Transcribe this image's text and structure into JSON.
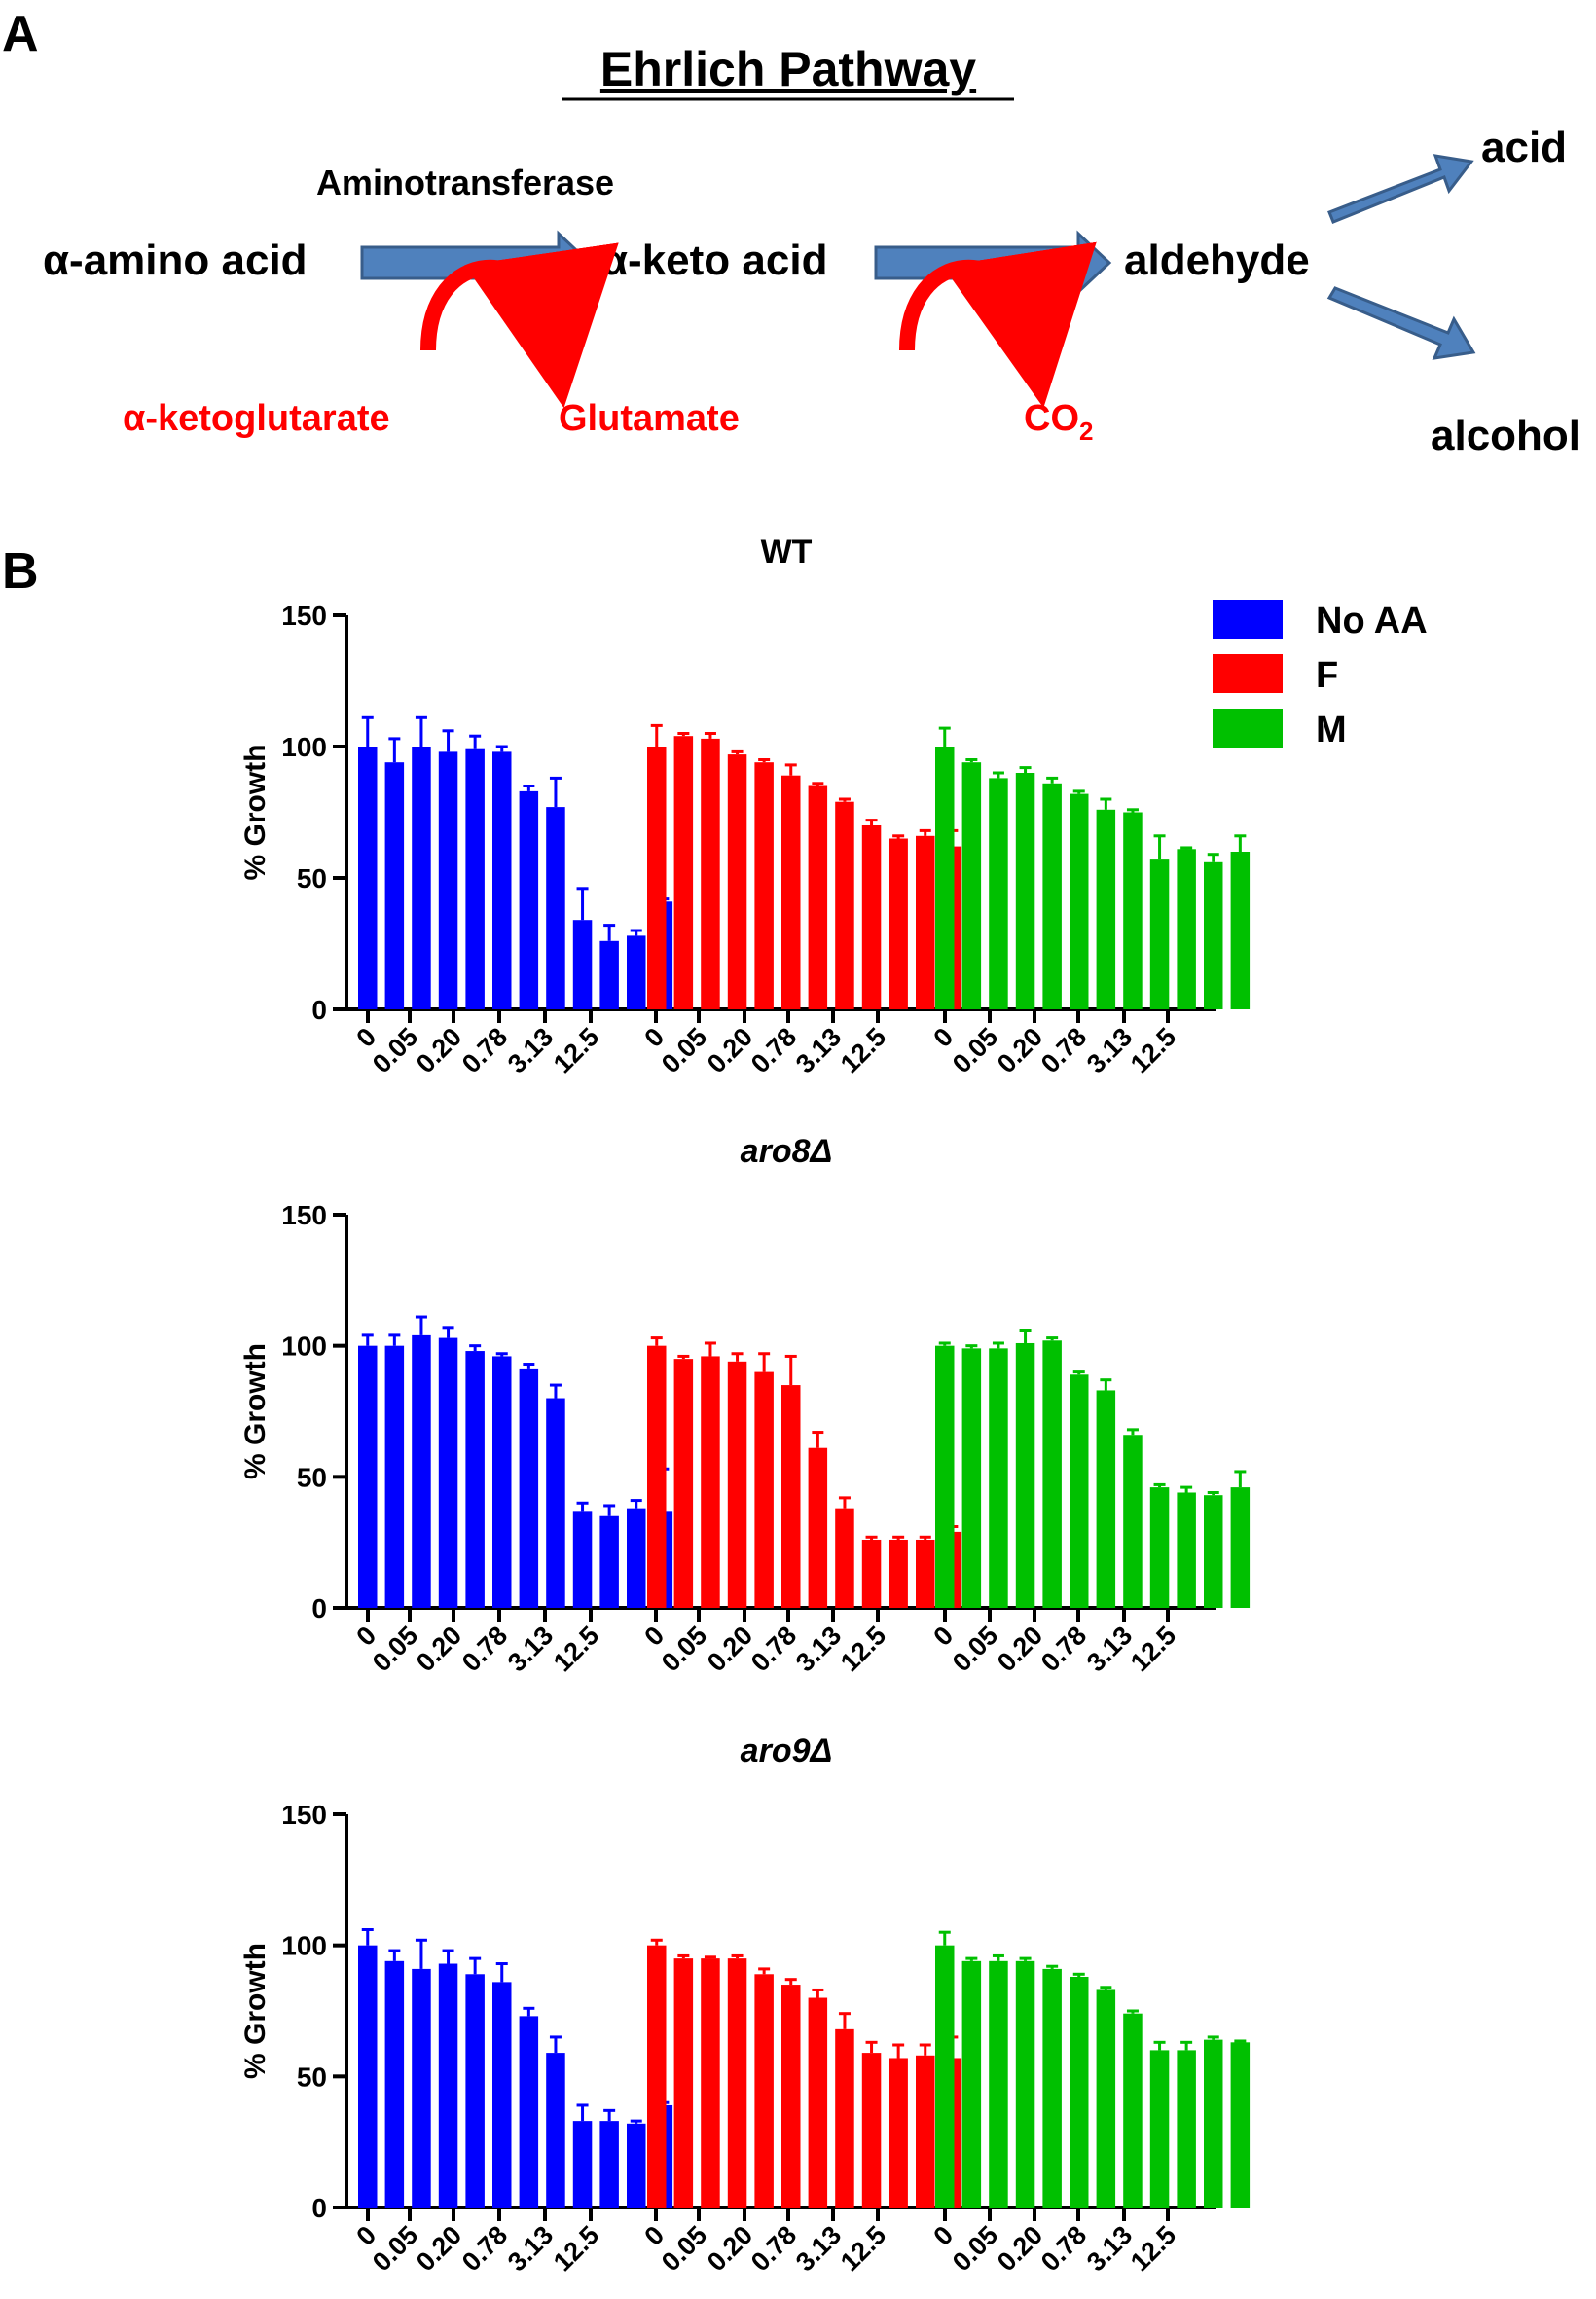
{
  "panel_a": {
    "label": "A",
    "title": "Ehrlich Pathway",
    "enzyme": "Aminotransferase",
    "nodes": {
      "amino_acid": "α-amino acid",
      "keto_acid": "α-keto acid",
      "aldehyde": "aldehyde",
      "acid": "acid",
      "alcohol": "alcohol"
    },
    "cofactors": {
      "substrate": "α-ketoglutarate",
      "product": "Glutamate",
      "co2_base": "CO",
      "co2_sub": "2"
    }
  },
  "panel_b": {
    "label": "B"
  },
  "colors": {
    "arrow_blue": "#4f81bd",
    "arrow_outline": "#385d8a",
    "red": "#ff0000",
    "no_aa": "#0000ff",
    "f": "#ff0000",
    "m": "#00c000"
  },
  "chart_data": [
    {
      "type": "bar",
      "title": "WT",
      "title_italic": false,
      "ylabel": "% Growth",
      "xlabel": "",
      "ylim": [
        0,
        150
      ],
      "yticks": [
        0,
        50,
        100,
        150
      ],
      "categories": [
        "0",
        "",
        "0.05",
        "",
        "0.20",
        "",
        "0.78",
        "",
        "3.13",
        "",
        "12.5",
        ""
      ],
      "tick_labels": [
        "0",
        "0.05",
        "0.20",
        "0.78",
        "3.13",
        "12.5"
      ],
      "legend": [
        "No AA",
        "F",
        "M"
      ],
      "legend_position": "top-right",
      "series": [
        {
          "name": "No AA",
          "color": "#0000ff",
          "values": [
            100,
            94,
            100,
            98,
            99,
            98,
            83,
            77,
            34,
            26,
            28,
            41
          ],
          "errors": [
            11,
            9,
            11,
            8,
            5,
            2,
            2,
            11,
            12,
            6,
            2,
            1
          ]
        },
        {
          "name": "F",
          "color": "#ff0000",
          "values": [
            100,
            104,
            103,
            97,
            94,
            89,
            85,
            79,
            70,
            65,
            66,
            62
          ],
          "errors": [
            8,
            1,
            2,
            1,
            1,
            4,
            1,
            1,
            2,
            1,
            2,
            6
          ]
        },
        {
          "name": "M",
          "color": "#00c000",
          "values": [
            100,
            94,
            88,
            90,
            86,
            82,
            76,
            75,
            57,
            61,
            56,
            60
          ],
          "errors": [
            7,
            1,
            2,
            2,
            2,
            1,
            4,
            1,
            9,
            0.5,
            3,
            6
          ]
        }
      ]
    },
    {
      "type": "bar",
      "title": "aro8Δ",
      "title_italic": true,
      "ylabel": "% Growth",
      "xlabel": "",
      "ylim": [
        0,
        150
      ],
      "yticks": [
        0,
        50,
        100,
        150
      ],
      "categories": [
        "0",
        "",
        "0.05",
        "",
        "0.20",
        "",
        "0.78",
        "",
        "3.13",
        "",
        "12.5",
        ""
      ],
      "tick_labels": [
        "0",
        "0.05",
        "0.20",
        "0.78",
        "3.13",
        "12.5"
      ],
      "series": [
        {
          "name": "No AA",
          "color": "#0000ff",
          "values": [
            100,
            100,
            104,
            103,
            98,
            96,
            91,
            80,
            37,
            35,
            38,
            37
          ],
          "errors": [
            4,
            4,
            7,
            4,
            2,
            1,
            2,
            5,
            3,
            4,
            3,
            16
          ]
        },
        {
          "name": "F",
          "color": "#ff0000",
          "values": [
            100,
            95,
            96,
            94,
            90,
            85,
            61,
            38,
            26,
            26,
            26,
            29
          ],
          "errors": [
            3,
            1,
            5,
            3,
            7,
            11,
            6,
            4,
            1,
            1,
            1,
            2
          ]
        },
        {
          "name": "M",
          "color": "#00c000",
          "values": [
            100,
            99,
            99,
            101,
            102,
            89,
            83,
            66,
            46,
            44,
            43,
            46
          ],
          "errors": [
            1,
            1,
            2,
            5,
            1,
            1,
            4,
            2,
            1,
            2,
            1,
            6
          ]
        }
      ]
    },
    {
      "type": "bar",
      "title": "aro9Δ",
      "title_italic": true,
      "ylabel": "% Growth",
      "xlabel": "",
      "ylim": [
        0,
        150
      ],
      "yticks": [
        0,
        50,
        100,
        150
      ],
      "categories": [
        "0",
        "",
        "0.05",
        "",
        "0.20",
        "",
        "0.78",
        "",
        "3.13",
        "",
        "12.5",
        ""
      ],
      "tick_labels": [
        "0",
        "0.05",
        "0.20",
        "0.78",
        "3.13",
        "12.5"
      ],
      "series": [
        {
          "name": "No AA",
          "color": "#0000ff",
          "values": [
            100,
            94,
            91,
            93,
            89,
            86,
            73,
            59,
            33,
            33,
            32,
            39
          ],
          "errors": [
            6,
            4,
            11,
            5,
            6,
            7,
            3,
            6,
            6,
            4,
            1,
            1
          ]
        },
        {
          "name": "F",
          "color": "#ff0000",
          "values": [
            100,
            95,
            95,
            95,
            89,
            85,
            80,
            68,
            59,
            57,
            58,
            57
          ],
          "errors": [
            2,
            1,
            0.5,
            1,
            2,
            2,
            3,
            6,
            4,
            5,
            4,
            8
          ]
        },
        {
          "name": "M",
          "color": "#00c000",
          "values": [
            100,
            94,
            94,
            94,
            91,
            88,
            83,
            74,
            60,
            60,
            64,
            63
          ],
          "errors": [
            5,
            1,
            2,
            1,
            1,
            1,
            1,
            1,
            3,
            3,
            1,
            0.5
          ]
        }
      ]
    }
  ]
}
